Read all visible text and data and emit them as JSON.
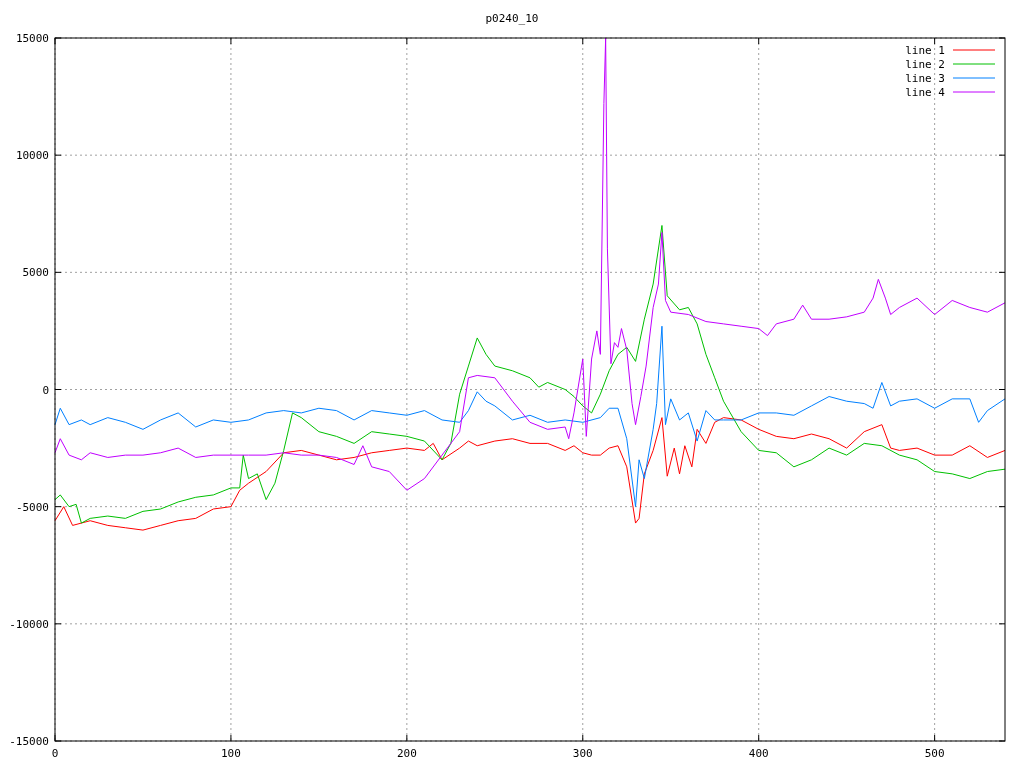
{
  "chart_data": {
    "type": "line",
    "title": "p0240_10",
    "xlim": [
      0,
      540
    ],
    "xticks": [
      0,
      100,
      200,
      300,
      400,
      500
    ],
    "ylim": [
      -15000,
      15000
    ],
    "yticks": [
      -15000,
      -10000,
      -5000,
      0,
      5000,
      10000,
      15000
    ],
    "grid": true,
    "legend": "top right",
    "series": [
      {
        "name": "line 1",
        "color": "#ff0000",
        "x": [
          0,
          5,
          10,
          20,
          30,
          40,
          50,
          60,
          70,
          80,
          90,
          100,
          105,
          110,
          120,
          130,
          140,
          150,
          160,
          170,
          180,
          190,
          200,
          210,
          215,
          220,
          230,
          235,
          240,
          250,
          260,
          270,
          280,
          290,
          295,
          300,
          305,
          310,
          315,
          320,
          325,
          330,
          332,
          335,
          340,
          345,
          348,
          352,
          355,
          358,
          362,
          365,
          370,
          375,
          380,
          390,
          400,
          410,
          420,
          430,
          440,
          450,
          460,
          470,
          475,
          480,
          490,
          500,
          510,
          520,
          530,
          540
        ],
        "values": [
          -5600,
          -5000,
          -5800,
          -5600,
          -5800,
          -5900,
          -6000,
          -5800,
          -5600,
          -5500,
          -5100,
          -5000,
          -4300,
          -4000,
          -3500,
          -2700,
          -2600,
          -2800,
          -3000,
          -2900,
          -2700,
          -2600,
          -2500,
          -2600,
          -2300,
          -3000,
          -2500,
          -2200,
          -2400,
          -2200,
          -2100,
          -2300,
          -2300,
          -2600,
          -2400,
          -2700,
          -2800,
          -2800,
          -2500,
          -2400,
          -3300,
          -5700,
          -5500,
          -3600,
          -2600,
          -1200,
          -3700,
          -2500,
          -3600,
          -2400,
          -3300,
          -1700,
          -2300,
          -1400,
          -1200,
          -1300,
          -1700,
          -2000,
          -2100,
          -1900,
          -2100,
          -2500,
          -1800,
          -1500,
          -2500,
          -2600,
          -2500,
          -2800,
          -2800,
          -2400,
          -2900,
          -2600
        ]
      },
      {
        "name": "line 2",
        "color": "#00c000",
        "x": [
          0,
          3,
          8,
          12,
          15,
          20,
          30,
          40,
          50,
          60,
          70,
          80,
          90,
          100,
          105,
          107,
          110,
          115,
          120,
          125,
          130,
          135,
          140,
          150,
          160,
          170,
          180,
          190,
          200,
          210,
          220,
          225,
          230,
          235,
          240,
          245,
          250,
          260,
          270,
          275,
          280,
          290,
          295,
          300,
          305,
          310,
          315,
          320,
          325,
          330,
          335,
          340,
          345,
          348,
          355,
          360,
          365,
          370,
          375,
          380,
          390,
          400,
          410,
          420,
          430,
          440,
          450,
          460,
          470,
          480,
          490,
          500,
          510,
          520,
          530,
          540
        ],
        "values": [
          -4700,
          -4500,
          -5000,
          -4900,
          -5700,
          -5500,
          -5400,
          -5500,
          -5200,
          -5100,
          -4800,
          -4600,
          -4500,
          -4200,
          -4200,
          -2800,
          -3800,
          -3600,
          -4700,
          -4000,
          -2600,
          -1000,
          -1200,
          -1800,
          -2000,
          -2300,
          -1800,
          -1900,
          -2000,
          -2200,
          -3000,
          -2300,
          -200,
          1000,
          2200,
          1500,
          1000,
          800,
          500,
          100,
          300,
          0,
          -300,
          -700,
          -1000,
          -200,
          800,
          1500,
          1800,
          1200,
          3000,
          4500,
          7000,
          4000,
          3400,
          3500,
          2800,
          1500,
          500,
          -500,
          -1800,
          -2600,
          -2700,
          -3300,
          -3000,
          -2500,
          -2800,
          -2300,
          -2400,
          -2800,
          -3000,
          -3500,
          -3600,
          -3800,
          -3500,
          -3400
        ]
      },
      {
        "name": "line 3",
        "color": "#0080ff",
        "x": [
          0,
          3,
          8,
          15,
          20,
          30,
          40,
          50,
          60,
          70,
          80,
          90,
          100,
          110,
          120,
          130,
          140,
          150,
          160,
          170,
          180,
          190,
          200,
          210,
          220,
          230,
          235,
          240,
          245,
          250,
          260,
          270,
          280,
          290,
          300,
          310,
          315,
          320,
          325,
          330,
          332,
          335,
          340,
          342,
          345,
          347,
          350,
          355,
          360,
          365,
          370,
          375,
          380,
          390,
          400,
          410,
          420,
          430,
          440,
          450,
          460,
          465,
          470,
          475,
          480,
          490,
          500,
          510,
          520,
          525,
          530,
          540
        ],
        "values": [
          -1500,
          -800,
          -1500,
          -1300,
          -1500,
          -1200,
          -1400,
          -1700,
          -1300,
          -1000,
          -1600,
          -1300,
          -1400,
          -1300,
          -1000,
          -900,
          -1000,
          -800,
          -900,
          -1300,
          -900,
          -1000,
          -1100,
          -900,
          -1300,
          -1400,
          -900,
          -100,
          -500,
          -700,
          -1300,
          -1100,
          -1400,
          -1300,
          -1400,
          -1200,
          -800,
          -800,
          -2100,
          -5000,
          -3000,
          -3800,
          -1700,
          -600,
          2700,
          -1500,
          -400,
          -1300,
          -1000,
          -2200,
          -900,
          -1300,
          -1300,
          -1300,
          -1000,
          -1000,
          -1100,
          -700,
          -300,
          -500,
          -600,
          -800,
          300,
          -700,
          -500,
          -400,
          -800,
          -400,
          -400,
          -1400,
          -900,
          -400
        ]
      },
      {
        "name": "line 4",
        "color": "#c000ff",
        "x": [
          0,
          3,
          8,
          15,
          20,
          30,
          40,
          50,
          60,
          70,
          80,
          90,
          100,
          110,
          120,
          130,
          140,
          150,
          160,
          170,
          175,
          180,
          190,
          200,
          210,
          220,
          230,
          235,
          240,
          250,
          260,
          270,
          280,
          290,
          292,
          295,
          300,
          302,
          305,
          308,
          310,
          312,
          313,
          314,
          316,
          318,
          320,
          322,
          325,
          328,
          330,
          333,
          336,
          340,
          343,
          345,
          347,
          350,
          360,
          370,
          380,
          390,
          400,
          405,
          410,
          420,
          425,
          430,
          440,
          450,
          460,
          465,
          468,
          472,
          475,
          480,
          490,
          500,
          510,
          520,
          530,
          540
        ],
        "values": [
          -2700,
          -2100,
          -2800,
          -3000,
          -2700,
          -2900,
          -2800,
          -2800,
          -2700,
          -2500,
          -2900,
          -2800,
          -2800,
          -2800,
          -2800,
          -2700,
          -2800,
          -2800,
          -2900,
          -3200,
          -2400,
          -3300,
          -3500,
          -4300,
          -3800,
          -2800,
          -1800,
          500,
          600,
          500,
          -500,
          -1400,
          -1700,
          -1600,
          -2100,
          -1000,
          1300,
          -2000,
          1300,
          2500,
          1500,
          12200,
          15000,
          6000,
          1100,
          2000,
          1800,
          2600,
          1700,
          -600,
          -1500,
          -300,
          1000,
          3500,
          4500,
          6700,
          3800,
          3300,
          3200,
          2900,
          2800,
          2700,
          2600,
          2300,
          2800,
          3000,
          3600,
          3000,
          3000,
          3100,
          3300,
          3900,
          4700,
          3900,
          3200,
          3500,
          3900,
          3200,
          3800,
          3500,
          3300,
          3700
        ]
      }
    ]
  }
}
